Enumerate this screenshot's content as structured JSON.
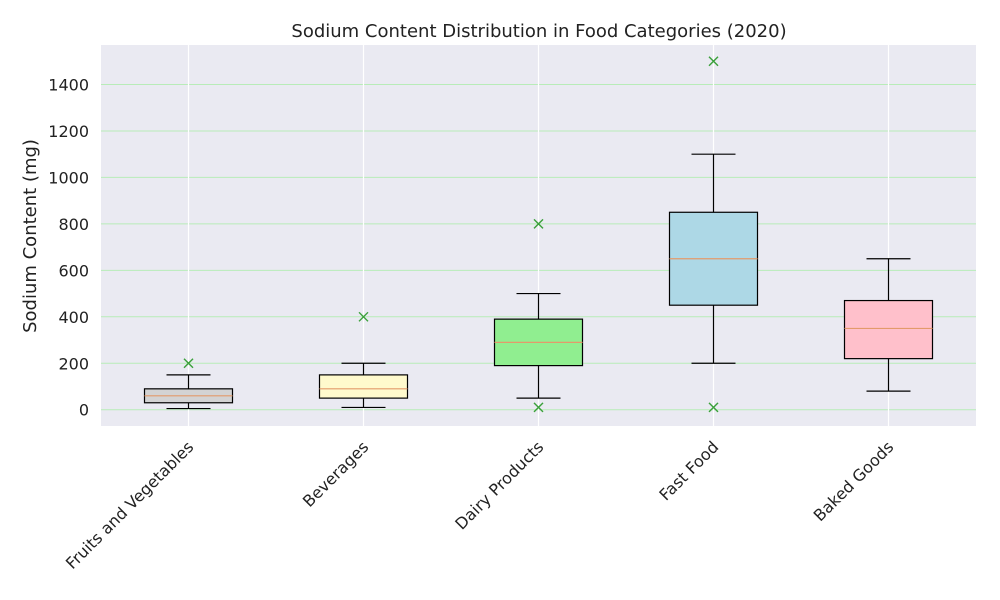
{
  "chart_data": {
    "type": "box",
    "title": "Sodium Content Distribution in Food Categories (2020)",
    "xlabel": "",
    "ylabel": "Sodium Content (mg)",
    "ylim": [
      -70,
      1570
    ],
    "yticks": [
      0,
      200,
      400,
      600,
      800,
      1000,
      1200,
      1400
    ],
    "grid": true,
    "colors": {
      "background": "#EAEAF2",
      "grid": "#b8ecb8",
      "median": "#e39a6b",
      "outlier": "#3aa03a",
      "box_edge": "#000000"
    },
    "categories": [
      "Fruits and Vegetables",
      "Beverages",
      "Dairy Products",
      "Fast Food",
      "Baked Goods"
    ],
    "boxes": [
      {
        "category": "Fruits and Vegetables",
        "whisker_low": 5,
        "q1": 30,
        "median": 60,
        "q3": 90,
        "whisker_high": 150,
        "outliers": [
          200
        ],
        "color": "#d3d3d3"
      },
      {
        "category": "Beverages",
        "whisker_low": 10,
        "q1": 50,
        "median": 90,
        "q3": 150,
        "whisker_high": 200,
        "outliers": [
          400
        ],
        "color": "#fffacd"
      },
      {
        "category": "Dairy Products",
        "whisker_low": 50,
        "q1": 190,
        "median": 290,
        "q3": 390,
        "whisker_high": 500,
        "outliers": [
          800,
          10
        ],
        "color": "#90ee90"
      },
      {
        "category": "Fast Food",
        "whisker_low": 200,
        "q1": 450,
        "median": 650,
        "q3": 850,
        "whisker_high": 1100,
        "outliers": [
          1500,
          10
        ],
        "color": "#add8e6"
      },
      {
        "category": "Baked Goods",
        "whisker_low": 80,
        "q1": 220,
        "median": 350,
        "q3": 470,
        "whisker_high": 650,
        "outliers": [],
        "color": "#ffc0cb"
      }
    ]
  }
}
